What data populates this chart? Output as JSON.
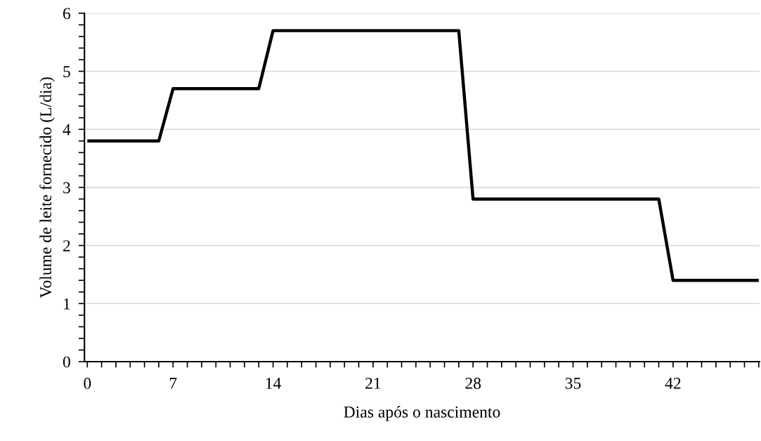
{
  "chart_data": {
    "type": "line",
    "xlabel": "Dias após o nascimento",
    "ylabel": "Volume de leite fornecido (L/dia)",
    "categories": [
      "0",
      null,
      null,
      null,
      null,
      null,
      "7",
      null,
      null,
      null,
      null,
      null,
      null,
      "14",
      null,
      null,
      null,
      null,
      null,
      null,
      "21",
      null,
      null,
      null,
      null,
      null,
      null,
      "28",
      null,
      null,
      null,
      null,
      null,
      null,
      "35",
      null,
      null,
      null,
      null,
      null,
      null,
      "42",
      null,
      null,
      null,
      null,
      null,
      null
    ],
    "series": [
      {
        "color": "#000000",
        "values": [
          3.8,
          3.8,
          3.8,
          3.8,
          3.8,
          3.8,
          4.7,
          4.7,
          4.7,
          4.7,
          4.7,
          4.7,
          4.7,
          5.7,
          5.7,
          5.7,
          5.7,
          5.7,
          5.7,
          5.7,
          5.7,
          5.7,
          5.7,
          5.7,
          5.7,
          5.7,
          5.7,
          2.8,
          2.8,
          2.8,
          2.8,
          2.8,
          2.8,
          2.8,
          2.8,
          2.8,
          2.8,
          2.8,
          2.8,
          2.8,
          2.8,
          1.4,
          1.4,
          1.4,
          1.4,
          1.4,
          1.4,
          1.4
        ]
      }
    ],
    "ylim": [
      0,
      6
    ],
    "yticks": [
      0,
      {
        "value": 0.2,
        "label": null
      },
      {
        "value": 0.4,
        "label": null
      },
      {
        "value": 0.6,
        "label": null
      },
      {
        "value": 0.8,
        "label": null
      },
      1,
      {
        "value": 1.2,
        "label": null
      },
      {
        "value": 1.4,
        "label": null
      },
      {
        "value": 1.6,
        "label": null
      },
      {
        "value": 1.8,
        "label": null
      },
      2,
      {
        "value": 2.2,
        "label": null
      },
      {
        "value": 2.4,
        "label": null
      },
      {
        "value": 2.6,
        "label": null
      },
      {
        "value": 2.8,
        "label": null
      },
      3,
      {
        "value": 3.2,
        "label": null
      },
      {
        "value": 3.4,
        "label": null
      },
      {
        "value": 3.6,
        "label": null
      },
      {
        "value": 3.8,
        "label": null
      },
      4,
      {
        "value": 4.2,
        "label": null
      },
      {
        "value": 4.4,
        "label": null
      },
      {
        "value": 4.6,
        "label": null
      },
      {
        "value": 4.8,
        "label": null
      },
      5,
      {
        "value": 5.2,
        "label": null
      },
      {
        "value": 5.4,
        "label": null
      },
      {
        "value": 5.6,
        "label": null
      },
      {
        "value": 5.8,
        "label": null
      },
      6
    ],
    "grid": "y",
    "marker": "none",
    "line_style": "solid"
  }
}
